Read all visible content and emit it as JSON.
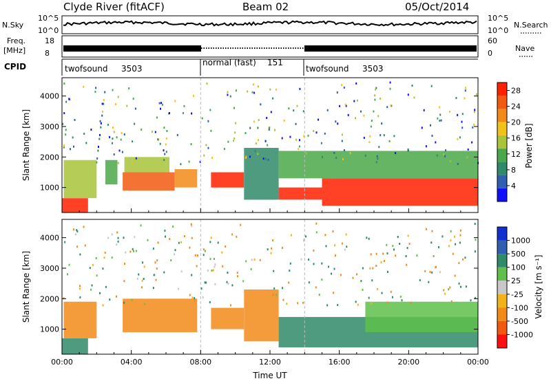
{
  "header": {
    "station": "Clyde River (fitACF)",
    "beam": "Beam 02",
    "date": "05/Oct/2014"
  },
  "top_panels": {
    "nsky_label": "N.Sky",
    "nsearch_label": "N.Search",
    "nsky_ticks": [
      "10^5",
      "10^0"
    ],
    "nsearch_ticks": [
      "10^5",
      "10^0"
    ],
    "freq_label_1": "Freq.",
    "freq_label_2": "[MHz]",
    "freq_ticks": [
      "18",
      "8"
    ],
    "nave_label": "Nave",
    "nave_ticks": [
      "60",
      "0"
    ],
    "cpid_label": "CPID",
    "cpid_segments": [
      {
        "name": "twofsound",
        "id": "3503",
        "start_h": 0,
        "end_h": 8
      },
      {
        "name": "normal (fast)",
        "id": "151",
        "start_h": 8,
        "end_h": 14
      },
      {
        "name": "twofsound",
        "id": "3503",
        "start_h": 14,
        "end_h": 24
      }
    ]
  },
  "chart_data": [
    {
      "type": "heatmap",
      "panel": "power",
      "ylabel": "Slant Range [km]",
      "xlabel": "Time UT",
      "x_ticks": [
        "00:00",
        "04:00",
        "08:00",
        "12:00",
        "16:00",
        "20:00",
        "00:00"
      ],
      "y_ticks": [
        "1000",
        "2000",
        "3000",
        "4000"
      ],
      "xlim_hours": [
        0,
        24
      ],
      "ylim_km": [
        180,
        4600
      ],
      "colorbar": {
        "label": "Power [dB]",
        "ticks": [
          "4",
          "8",
          "12",
          "16",
          "20",
          "24",
          "28"
        ],
        "range": [
          0,
          30
        ],
        "colors": [
          "#1010ff",
          "#2f5fb0",
          "#2f8a6a",
          "#4aa84a",
          "#a8c43a",
          "#f2c21a",
          "#f28a1a",
          "#f25a10",
          "#ff2000"
        ]
      },
      "regions": [
        {
          "t0": 0.0,
          "t1": 1.5,
          "r0": 180,
          "r1": 650,
          "v": 28
        },
        {
          "t0": 0.1,
          "t1": 2.0,
          "r0": 650,
          "r1": 1900,
          "v": 14
        },
        {
          "t0": 2.5,
          "t1": 3.2,
          "r0": 1100,
          "r1": 1900,
          "v": 10
        },
        {
          "t0": 3.5,
          "t1": 6.5,
          "r0": 900,
          "r1": 1500,
          "v": 26
        },
        {
          "t0": 3.6,
          "t1": 6.2,
          "r0": 1500,
          "r1": 2000,
          "v": 14
        },
        {
          "t0": 6.5,
          "t1": 7.8,
          "r0": 1000,
          "r1": 1600,
          "v": 20
        },
        {
          "t0": 8.6,
          "t1": 10.5,
          "r0": 1000,
          "r1": 1500,
          "v": 27
        },
        {
          "t0": 10.5,
          "t1": 12.5,
          "r0": 600,
          "r1": 2300,
          "v": 7
        },
        {
          "t0": 12.5,
          "t1": 15.0,
          "r0": 600,
          "r1": 1000,
          "v": 28
        },
        {
          "t0": 15.0,
          "t1": 24.0,
          "r0": 400,
          "r1": 1300,
          "v": 29
        },
        {
          "t0": 12.5,
          "t1": 24.0,
          "r0": 1300,
          "r1": 2200,
          "v": 12
        }
      ]
    },
    {
      "type": "heatmap",
      "panel": "velocity",
      "ylabel": "Slant Range [km]",
      "xlabel": "Time UT",
      "x_ticks": [
        "00:00",
        "04:00",
        "08:00",
        "12:00",
        "16:00",
        "20:00",
        "00:00"
      ],
      "y_ticks": [
        "1000",
        "2000",
        "3000",
        "4000"
      ],
      "xlim_hours": [
        0,
        24
      ],
      "ylim_km": [
        180,
        4600
      ],
      "colorbar": {
        "label": "Velocity [m s⁻¹]",
        "ticks": [
          "1000",
          "500",
          "100",
          "25",
          "-25",
          "-100",
          "-500",
          "-1000"
        ],
        "colors": [
          "#1030d0",
          "#2f5fb0",
          "#2f8a6a",
          "#5fc04a",
          "#c8c8c8",
          "#f2b21a",
          "#f28a1a",
          "#f25a10",
          "#ff1010"
        ]
      },
      "regions": [
        {
          "t0": 0.0,
          "t1": 1.5,
          "r0": 180,
          "r1": 700,
          "v": 100
        },
        {
          "t0": 0.1,
          "t1": 2.0,
          "r0": 700,
          "r1": 1900,
          "v": -500
        },
        {
          "t0": 3.5,
          "t1": 7.8,
          "r0": 900,
          "r1": 2000,
          "v": -500
        },
        {
          "t0": 8.6,
          "t1": 10.5,
          "r0": 1000,
          "r1": 1700,
          "v": -500
        },
        {
          "t0": 10.5,
          "t1": 12.5,
          "r0": 600,
          "r1": 2300,
          "v": -500
        },
        {
          "t0": 12.5,
          "t1": 24.0,
          "r0": 400,
          "r1": 1400,
          "v": 100
        },
        {
          "t0": 17.5,
          "t1": 24.0,
          "r0": 900,
          "r1": 1900,
          "v": 25
        }
      ]
    }
  ]
}
